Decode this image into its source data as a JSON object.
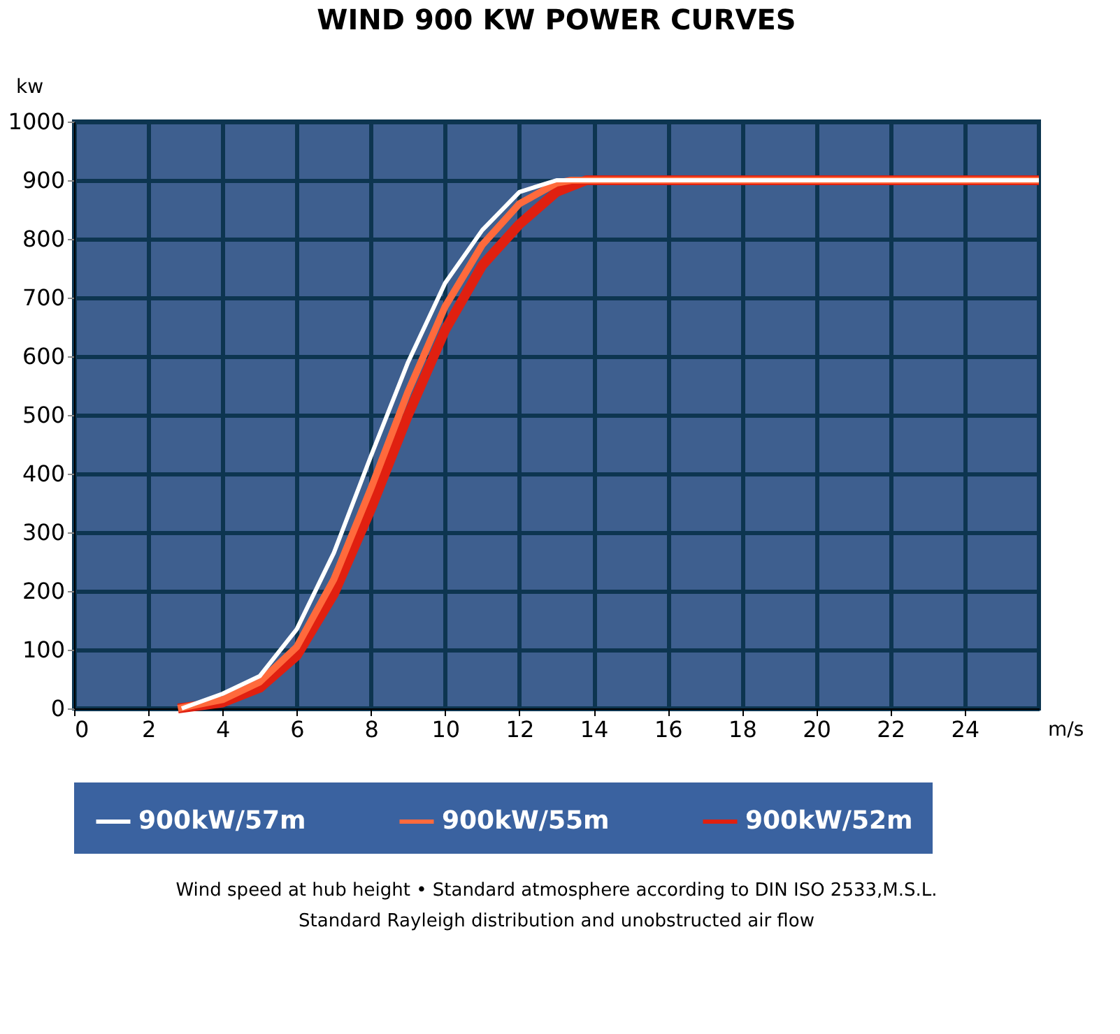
{
  "chart_data": {
    "type": "line",
    "title": "WIND 900 KW POWER CURVES",
    "xlabel": "m/s",
    "ylabel": "kw",
    "xlim": [
      0,
      26
    ],
    "xticks": [
      0,
      2,
      4,
      6,
      8,
      10,
      12,
      14,
      16,
      18,
      20,
      22,
      24
    ],
    "ylim": [
      0,
      1000
    ],
    "yticks": [
      0,
      100,
      200,
      300,
      400,
      500,
      600,
      700,
      800,
      900,
      1000
    ],
    "grid": true,
    "legend": "bottom",
    "marker": "none",
    "line_style": "solid",
    "series": [
      {
        "name": "900kW/57m",
        "color": "#ffffff",
        "x": [
          2.9,
          4,
          5,
          6,
          7,
          8,
          9,
          10,
          11,
          12,
          13,
          26
        ],
        "values": [
          0,
          25,
          55,
          135,
          265,
          430,
          590,
          725,
          815,
          880,
          900,
          900
        ]
      },
      {
        "name": "900kW/55m",
        "color": "#ff6a3c",
        "x": [
          2.8,
          4,
          5,
          6,
          7,
          8,
          9,
          10,
          11,
          12,
          13,
          13.4,
          26
        ],
        "values": [
          0,
          15,
          45,
          105,
          220,
          375,
          540,
          685,
          790,
          860,
          895,
          900,
          900
        ]
      },
      {
        "name": "900kW/52m",
        "color": "#e02010",
        "x": [
          2.8,
          4,
          5,
          6,
          7,
          8,
          9,
          10,
          11,
          12,
          13,
          13.8,
          26
        ],
        "values": [
          0,
          10,
          35,
          90,
          195,
          340,
          500,
          645,
          755,
          825,
          880,
          900,
          900
        ]
      }
    ],
    "annotations": [
      "Wind speed at hub height • Standard atmosphere according to DIN ISO 2533,M.S.L.",
      "Standard Rayleigh distribution and unobstructed air flow"
    ]
  }
}
